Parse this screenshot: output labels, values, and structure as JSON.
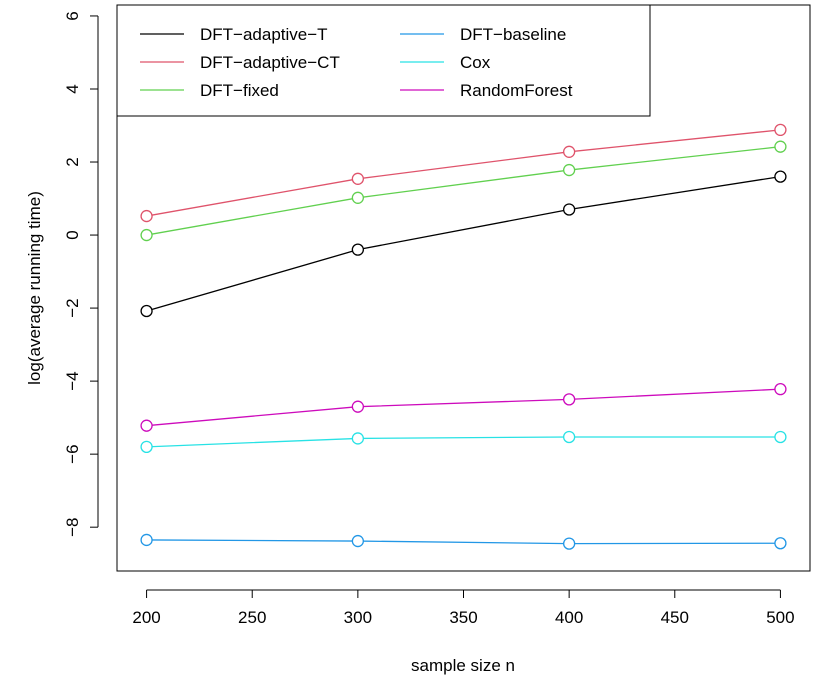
{
  "chart_data": {
    "type": "line",
    "title": "",
    "xlabel": "sample size n",
    "ylabel": "log(average running time)",
    "xlim": [
      186,
      514
    ],
    "ylim": [
      -9.2,
      6.3
    ],
    "xticks": [
      200,
      250,
      300,
      350,
      400,
      450,
      500
    ],
    "yticks": [
      -8,
      -6,
      -4,
      -2,
      0,
      2,
      4,
      6
    ],
    "ytick_labels": [
      "−8",
      "−6",
      "−4",
      "−2",
      "0",
      "2",
      "4",
      "6"
    ],
    "x": [
      200,
      300,
      400,
      500
    ],
    "grid": false,
    "legend_position": "top-left",
    "series": [
      {
        "name": "DFT−adaptive−T",
        "color": "#000000",
        "values": [
          -2.08,
          -0.4,
          0.7,
          1.6
        ]
      },
      {
        "name": "DFT−adaptive−CT",
        "color": "#DF536B",
        "values": [
          0.52,
          1.54,
          2.28,
          2.88
        ]
      },
      {
        "name": "DFT−fixed",
        "color": "#61D04F",
        "values": [
          0.0,
          1.02,
          1.78,
          2.42
        ]
      },
      {
        "name": "DFT−baseline",
        "color": "#2297E6",
        "values": [
          -8.35,
          -8.38,
          -8.45,
          -8.44
        ]
      },
      {
        "name": "Cox",
        "color": "#28E2E5",
        "values": [
          -5.8,
          -5.57,
          -5.53,
          -5.53
        ]
      },
      {
        "name": "RandomForest",
        "color": "#CD0BBC",
        "values": [
          -5.22,
          -4.7,
          -4.5,
          -4.22
        ]
      }
    ]
  }
}
